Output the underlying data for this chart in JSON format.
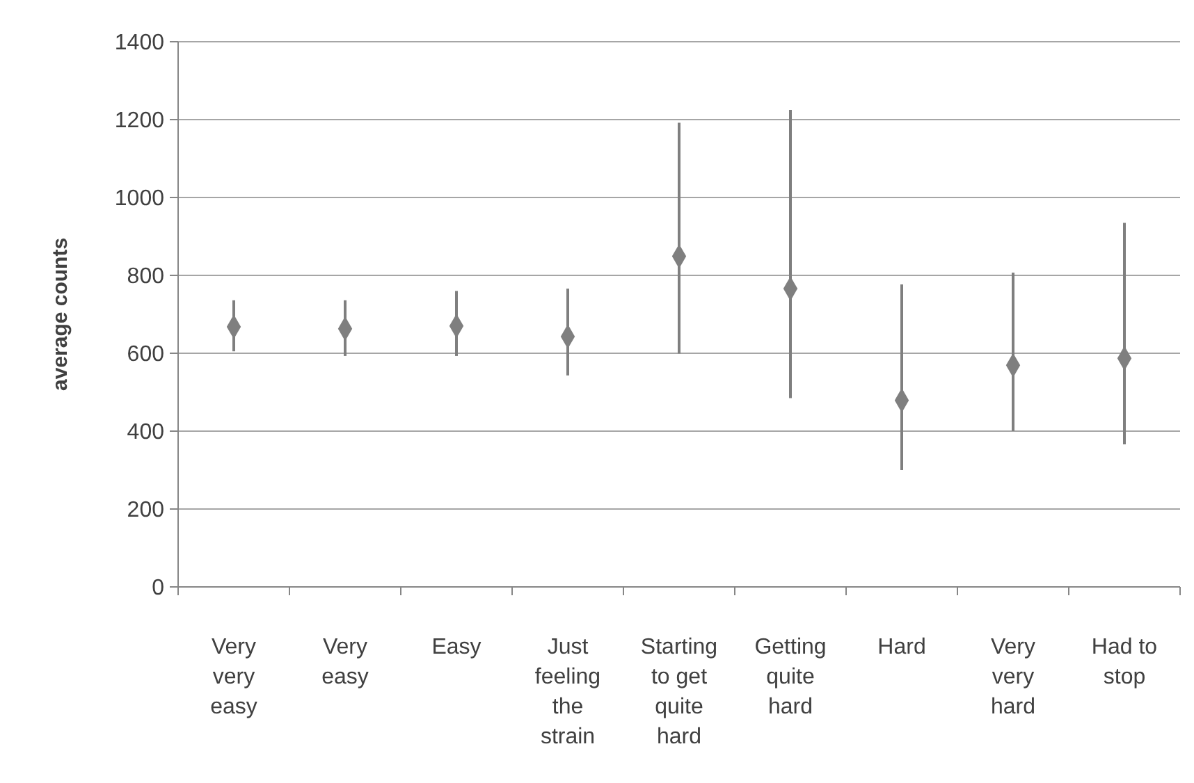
{
  "chart_data": {
    "type": "scatter",
    "ylabel": "average counts",
    "categories": [
      "Very very easy",
      "Very easy",
      "Easy",
      "Just feeling the strain",
      "Starting to get quite hard",
      "Getting quite hard",
      "Hard",
      "Very very hard",
      "Had to stop"
    ],
    "values": [
      668,
      663,
      670,
      643,
      849,
      766,
      479,
      569,
      587
    ],
    "errors": [
      [
        605,
        736
      ],
      [
        593,
        736
      ],
      [
        593,
        760
      ],
      [
        543,
        766
      ],
      [
        599,
        1192
      ],
      [
        485,
        1225
      ],
      [
        300,
        777
      ],
      [
        400,
        807
      ],
      [
        366,
        935
      ]
    ],
    "color": "#7f7f7f",
    "marker": "diamond",
    "ylim": [
      0,
      1400
    ],
    "yticks": [
      0,
      200,
      400,
      600,
      800,
      1000,
      1200,
      1400
    ],
    "grid": "y"
  }
}
